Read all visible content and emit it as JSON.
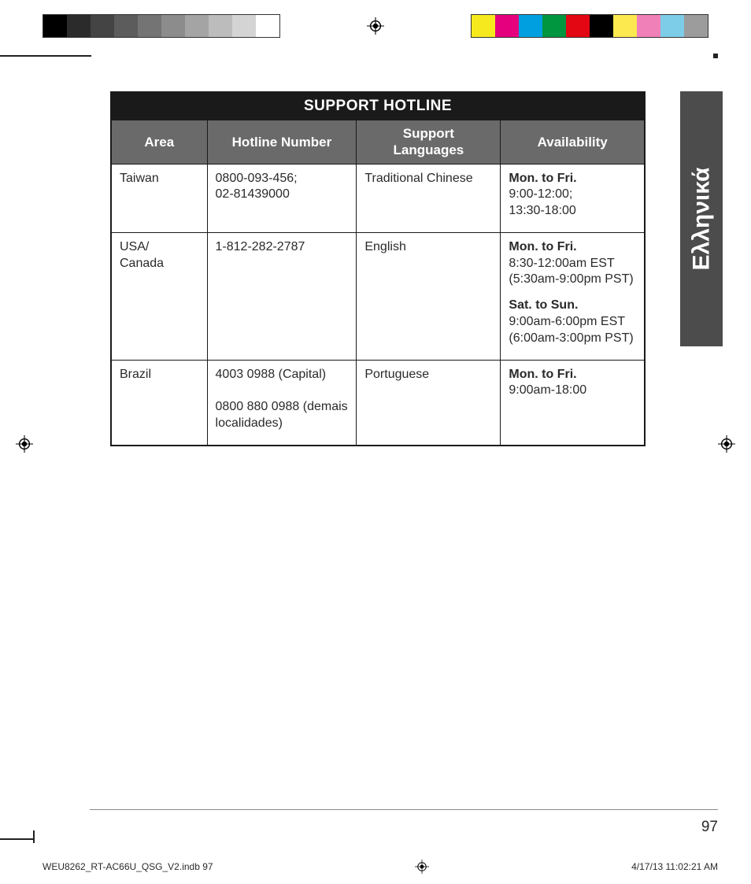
{
  "colorbar": {
    "grayscale": [
      "#000000",
      "#2b2b2b",
      "#444444",
      "#5c5c5c",
      "#747474",
      "#8c8c8c",
      "#a4a4a4",
      "#bcbcbc",
      "#d4d4d4",
      "#ffffff"
    ],
    "colors": [
      "#f6ea1e",
      "#e5007e",
      "#00a0e0",
      "#009640",
      "#e30613",
      "#000000",
      "#fce94f",
      "#f080b8",
      "#7ecde8",
      "#9c9c9c"
    ]
  },
  "table": {
    "title": "SUPPORT HOTLINE",
    "columns": [
      "Area",
      "Hotline Number",
      "Support Languages",
      "Availability"
    ],
    "col_widths_pct": [
      18,
      28,
      27,
      27
    ],
    "rows": [
      {
        "area": "Taiwan",
        "hotline": "0800-093-456;\n02-81439000",
        "languages": "Traditional Chinese",
        "availability": [
          {
            "heading": "Mon. to Fri.",
            "detail": "9:00-12:00;\n13:30-18:00"
          }
        ]
      },
      {
        "area": "USA/\nCanada",
        "hotline": "1-812-282-2787",
        "languages": "English",
        "availability": [
          {
            "heading": "Mon. to Fri.",
            "detail": "8:30-12:00am EST\n(5:30am-9:00pm PST)"
          },
          {
            "heading": "Sat. to Sun.",
            "detail": "9:00am-6:00pm EST\n(6:00am-3:00pm PST)"
          }
        ]
      },
      {
        "area": "Brazil",
        "hotline": "4003 0988 (Capital)\n\n0800 880 0988 (demais localidades)",
        "languages": "Portuguese",
        "availability": [
          {
            "heading": "Mon. to Fri.",
            "detail": "9:00am-18:00"
          }
        ]
      }
    ]
  },
  "side_tab": "Ελληνικά",
  "page_number": "97",
  "footer": {
    "filename": "WEU8262_RT-AC66U_QSG_V2.indb   97",
    "timestamp": "4/17/13   11:02:21 AM"
  }
}
